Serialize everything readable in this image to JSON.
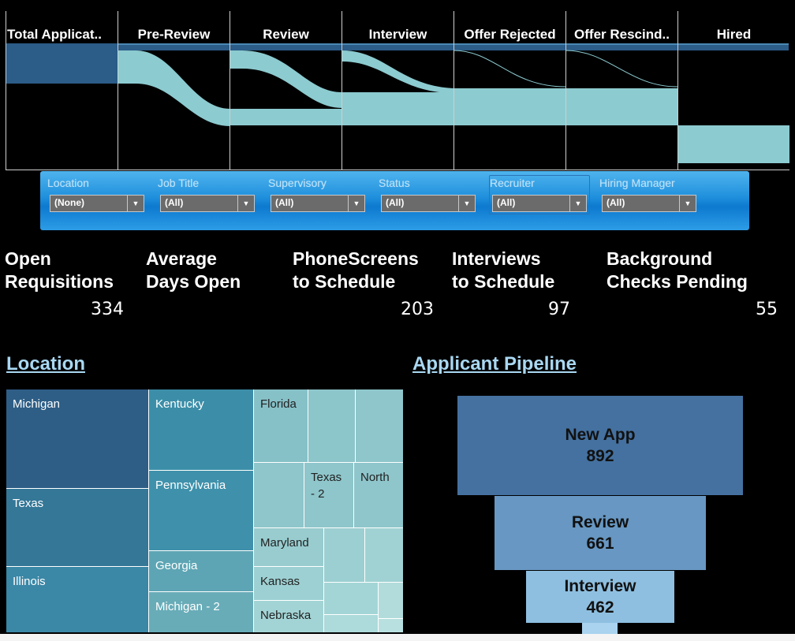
{
  "sankey": {
    "stages": [
      "Total Applicat..",
      "Pre-Review",
      "Review",
      "Interview",
      "Offer Rejected",
      "Offer Rescind..",
      "Hired"
    ],
    "colors": {
      "total": "#2c5c88",
      "flow": "#8ccbd0"
    }
  },
  "filters": [
    {
      "label": "Location",
      "value": "(None)"
    },
    {
      "label": "Job Title",
      "value": "(All)"
    },
    {
      "label": "Supervisory",
      "value": "(All)"
    },
    {
      "label": "Status",
      "value": "(All)"
    },
    {
      "label": "Recruiter",
      "value": "(All)"
    },
    {
      "label": "Hiring Manager",
      "value": "(All)"
    }
  ],
  "kpis": [
    {
      "line1": "Open",
      "line2": "Requisitions",
      "value": "334"
    },
    {
      "line1": "Average",
      "line2": "Days Open",
      "value": ""
    },
    {
      "line1": "PhoneScreens",
      "line2": "to Schedule",
      "value": "203"
    },
    {
      "line1": "Interviews",
      "line2": "to Schedule",
      "value": "97"
    },
    {
      "line1": "Background",
      "line2": "Checks Pending",
      "value": "55"
    }
  ],
  "location": {
    "title": "Location",
    "tiles": [
      {
        "label": "Michigan",
        "color": "#2e5e86",
        "text": "#ffffff"
      },
      {
        "label": "Texas",
        "color": "#347797",
        "text": "#ffffff"
      },
      {
        "label": "Illinois",
        "color": "#3a87a6",
        "text": "#ffffff"
      },
      {
        "label": "Kentucky",
        "color": "#3c8ea8",
        "text": "#ffffff"
      },
      {
        "label": "Pennsylvania",
        "color": "#3f91ab",
        "text": "#ffffff"
      },
      {
        "label": "Georgia",
        "color": "#5da5b4",
        "text": "#ffffff"
      },
      {
        "label": "Michigan - 2",
        "color": "#68acb8",
        "text": "#ffffff"
      },
      {
        "label": "Florida",
        "color": "#86c1c8",
        "text": "#222222"
      },
      {
        "label": "Texas - 2",
        "color": "#8ec6cb",
        "text": "#222222"
      },
      {
        "label": "North",
        "color": "#8ec6cb",
        "text": "#222222"
      },
      {
        "label": "Maryland",
        "color": "#98cccf",
        "text": "#222222"
      },
      {
        "label": "Kansas",
        "color": "#9dd0d2",
        "text": "#222222"
      },
      {
        "label": "Nebraska",
        "color": "#a3d4d5",
        "text": "#222222"
      }
    ]
  },
  "pipeline": {
    "title": "Applicant Pipeline",
    "stages": [
      {
        "label": "New App",
        "value": "892",
        "color": "#4471a0"
      },
      {
        "label": "Review",
        "value": "661",
        "color": "#6797c2"
      },
      {
        "label": "Interview",
        "value": "462",
        "color": "#8ebfe0"
      }
    ]
  }
}
